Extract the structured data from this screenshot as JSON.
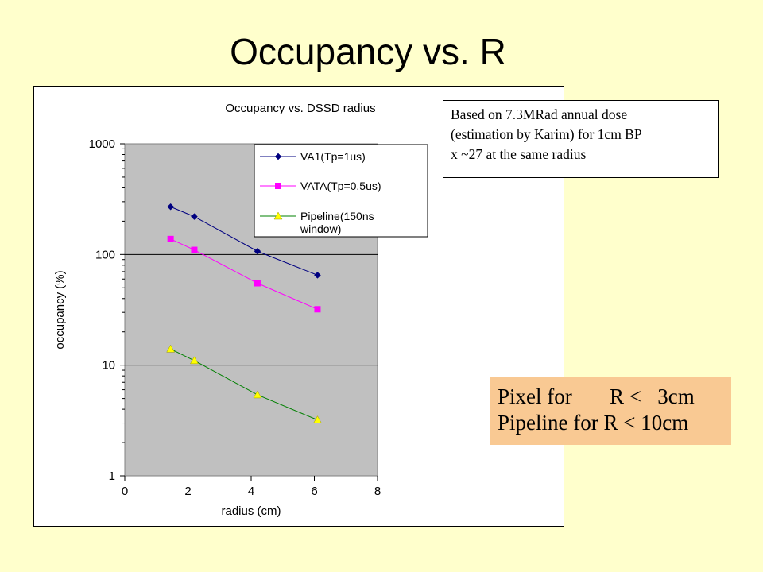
{
  "slide_title": "Occupancy vs. R",
  "note_lines": [
    "Based on 7.3MRad annual dose",
    "(estimation by Karim) for 1cm BP",
    "x ~27 at the same radius"
  ],
  "callout_lines": [
    "Pixel for       R <   3cm",
    "Pipeline for R < 10cm"
  ],
  "colors": {
    "slide_background": "#ffffcc",
    "plot_background": "#c0c0c0",
    "callout_background": "#f9c993",
    "series_va1": "#000080",
    "series_vata": "#ff00ff",
    "series_pipeline": "#ffff00"
  },
  "chart_data": {
    "type": "line",
    "title": "Occupancy vs. DSSD radius",
    "xlabel": "radius (cm)",
    "ylabel": "occupancy (%)",
    "xlim": [
      0,
      8
    ],
    "ylim": [
      1,
      1000
    ],
    "y_scale": "log",
    "x_ticks": [
      "0",
      "2",
      "4",
      "6",
      "8"
    ],
    "y_ticks": [
      "1",
      "10",
      "100",
      "1000"
    ],
    "grid": "horizontal major lines",
    "legend_position": "top-right",
    "x": [
      1.45,
      2.2,
      4.2,
      6.1
    ],
    "series": [
      {
        "name": "VA1(Tp=1us)",
        "marker": "diamond",
        "color": "#000080",
        "values": [
          270,
          220,
          107,
          65
        ]
      },
      {
        "name": "VATA(Tp=0.5us)",
        "marker": "square",
        "color": "#ff00ff",
        "values": [
          138,
          110,
          55,
          32
        ]
      },
      {
        "name": "Pipeline(150ns window)",
        "marker": "triangle",
        "color": "#ffff00",
        "values": [
          14,
          11,
          5.4,
          3.2
        ]
      }
    ]
  }
}
